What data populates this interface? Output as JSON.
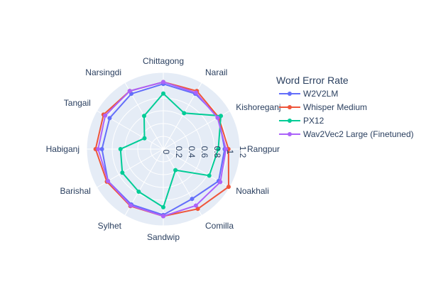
{
  "chart_data": {
    "type": "radar",
    "categories": [
      "Chittagong",
      "Narail",
      "Kishoreganj",
      "Rangpur",
      "Noakhali",
      "Comilla",
      "Sandwip",
      "Sylhet",
      "Barishal",
      "Habiganj",
      "Tangail",
      "Narsingdi"
    ],
    "radial_ticks": [
      "0",
      "0.2",
      "0.4",
      "0.6",
      "0.8",
      "1",
      "1.2"
    ],
    "radial_range": [
      0,
      1.2
    ],
    "legend_title": "Word Error Rate",
    "legend_position": "top-right",
    "series": [
      {
        "name": "W2V2LM",
        "color": "#636efa",
        "values": [
          1.02,
          1.0,
          1.0,
          0.96,
          1.0,
          0.9,
          1.03,
          1.0,
          1.0,
          0.96,
          0.97,
          1.0
        ]
      },
      {
        "name": "Whisper Medium",
        "color": "#ef553b",
        "values": [
          1.05,
          1.05,
          1.0,
          1.02,
          1.18,
          1.08,
          1.05,
          1.03,
          1.02,
          1.06,
          1.08,
          1.05
        ]
      },
      {
        "name": "PX12",
        "color": "#00cc96",
        "values": [
          0.87,
          0.65,
          1.04,
          0.86,
          0.83,
          0.38,
          0.91,
          0.77,
          0.74,
          0.67,
          0.34,
          0.6
        ]
      },
      {
        "name": "Wav2Vec2 Large (Finetuned)",
        "color": "#ab63fa",
        "values": [
          1.05,
          1.02,
          0.98,
          0.98,
          1.03,
          1.02,
          1.05,
          1.02,
          1.0,
          1.02,
          1.05,
          1.05
        ]
      }
    ]
  }
}
